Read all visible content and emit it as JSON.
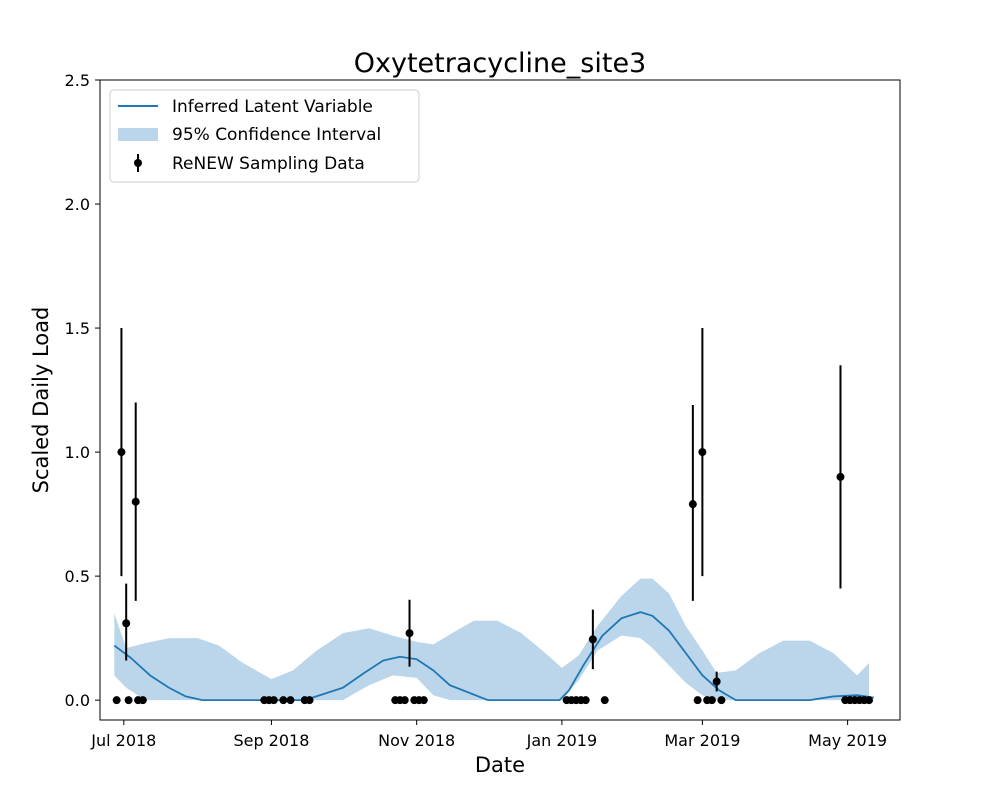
{
  "chart_data": {
    "type": "line",
    "title": "Oxytetracycline_site3",
    "xlabel": "Date",
    "ylabel": "Scaled Daily Load",
    "xlim": [
      "2018-06-21",
      "2019-05-23"
    ],
    "ylim": [
      -0.08,
      2.5
    ],
    "x_ticks": [
      {
        "date": "2018-07-01",
        "label": "Jul 2018"
      },
      {
        "date": "2018-09-01",
        "label": "Sep 2018"
      },
      {
        "date": "2018-11-01",
        "label": "Nov 2018"
      },
      {
        "date": "2019-01-01",
        "label": "Jan 2019"
      },
      {
        "date": "2019-03-01",
        "label": "Mar 2019"
      },
      {
        "date": "2019-05-01",
        "label": "May 2019"
      }
    ],
    "y_ticks": [
      {
        "value": 0.0,
        "label": "0.0"
      },
      {
        "value": 0.5,
        "label": "0.5"
      },
      {
        "value": 1.0,
        "label": "1.0"
      },
      {
        "value": 1.5,
        "label": "1.5"
      },
      {
        "value": 2.0,
        "label": "2.0"
      },
      {
        "value": 2.5,
        "label": "2.5"
      }
    ],
    "grid": false,
    "legend_position": "top-left",
    "legend": [
      {
        "key": "latent",
        "label": "Inferred Latent Variable"
      },
      {
        "key": "ci",
        "label": "95% Confidence Interval"
      },
      {
        "key": "samples",
        "label": "ReNEW Sampling Data"
      }
    ],
    "colors": {
      "line": "#1f77b4",
      "band": "#bbd6ea",
      "points": "#000000"
    },
    "series": [
      {
        "key": "latent",
        "type": "line",
        "x": [
          "2018-06-27",
          "2018-07-04",
          "2018-07-12",
          "2018-07-20",
          "2018-07-27",
          "2018-08-03",
          "2018-08-15",
          "2018-09-01",
          "2018-09-15",
          "2018-10-01",
          "2018-10-10",
          "2018-10-18",
          "2018-10-25",
          "2018-11-01",
          "2018-11-08",
          "2018-11-15",
          "2018-12-01",
          "2018-12-31",
          "2019-01-04",
          "2019-01-10",
          "2019-01-18",
          "2019-01-26",
          "2019-02-03",
          "2019-02-08",
          "2019-02-15",
          "2019-02-22",
          "2019-03-01",
          "2019-03-08",
          "2019-03-15",
          "2019-04-01",
          "2019-04-15",
          "2019-04-25",
          "2019-05-05",
          "2019-05-12"
        ],
        "y": [
          0.22,
          0.17,
          0.1,
          0.05,
          0.015,
          0.0,
          0.0,
          0.0,
          0.0,
          0.05,
          0.11,
          0.16,
          0.175,
          0.165,
          0.12,
          0.06,
          0.0,
          0.0,
          0.04,
          0.14,
          0.26,
          0.33,
          0.355,
          0.34,
          0.28,
          0.19,
          0.1,
          0.04,
          0.0,
          0.0,
          0.0,
          0.015,
          0.02,
          0.01
        ]
      },
      {
        "key": "ci",
        "type": "area",
        "x": [
          "2018-06-27",
          "2018-07-02",
          "2018-07-10",
          "2018-07-20",
          "2018-08-01",
          "2018-08-10",
          "2018-08-20",
          "2018-09-01",
          "2018-09-10",
          "2018-09-20",
          "2018-10-01",
          "2018-10-12",
          "2018-10-22",
          "2018-11-01",
          "2018-11-08",
          "2018-11-15",
          "2018-11-25",
          "2018-12-05",
          "2018-12-15",
          "2018-12-25",
          "2019-01-01",
          "2019-01-08",
          "2019-01-16",
          "2019-01-26",
          "2019-02-03",
          "2019-02-08",
          "2019-02-15",
          "2019-02-22",
          "2019-03-01",
          "2019-03-07",
          "2019-03-15",
          "2019-03-25",
          "2019-04-04",
          "2019-04-15",
          "2019-04-25",
          "2019-05-05",
          "2019-05-10"
        ],
        "upper": [
          0.35,
          0.21,
          0.23,
          0.25,
          0.25,
          0.22,
          0.15,
          0.085,
          0.12,
          0.2,
          0.27,
          0.29,
          0.26,
          0.235,
          0.225,
          0.265,
          0.32,
          0.32,
          0.27,
          0.19,
          0.13,
          0.18,
          0.3,
          0.42,
          0.49,
          0.49,
          0.43,
          0.3,
          0.2,
          0.11,
          0.12,
          0.19,
          0.24,
          0.24,
          0.19,
          0.1,
          0.15
        ],
        "lower": [
          0.1,
          0.05,
          0.0,
          0.0,
          0.0,
          0.0,
          0.0,
          0.0,
          0.0,
          0.0,
          0.0,
          0.06,
          0.1,
          0.09,
          0.02,
          0.0,
          0.0,
          0.0,
          0.0,
          0.0,
          0.0,
          0.08,
          0.2,
          0.26,
          0.25,
          0.21,
          0.14,
          0.07,
          0.02,
          0.0,
          0.0,
          0.0,
          0.0,
          0.0,
          0.0,
          0.0,
          0.0
        ]
      },
      {
        "key": "samples",
        "type": "errorbar",
        "points": [
          {
            "x": "2018-06-28",
            "y": 0.0
          },
          {
            "x": "2018-06-30",
            "y": 1.0,
            "err_low": 0.5,
            "err_high": 1.5
          },
          {
            "x": "2018-07-02",
            "y": 0.31,
            "err_low": 0.16,
            "err_high": 0.47
          },
          {
            "x": "2018-07-03",
            "y": 0.0
          },
          {
            "x": "2018-07-06",
            "y": 0.8,
            "err_low": 0.4,
            "err_high": 1.2
          },
          {
            "x": "2018-07-07",
            "y": 0.0
          },
          {
            "x": "2018-07-09",
            "y": 0.0
          },
          {
            "x": "2018-08-29",
            "y": 0.0
          },
          {
            "x": "2018-08-31",
            "y": 0.0
          },
          {
            "x": "2018-09-02",
            "y": 0.0
          },
          {
            "x": "2018-09-06",
            "y": 0.0
          },
          {
            "x": "2018-09-09",
            "y": 0.0
          },
          {
            "x": "2018-09-15",
            "y": 0.0
          },
          {
            "x": "2018-09-17",
            "y": 0.0
          },
          {
            "x": "2018-10-23",
            "y": 0.0
          },
          {
            "x": "2018-10-25",
            "y": 0.0
          },
          {
            "x": "2018-10-27",
            "y": 0.0
          },
          {
            "x": "2018-10-29",
            "y": 0.27,
            "err_low": 0.135,
            "err_high": 0.405
          },
          {
            "x": "2018-10-31",
            "y": 0.0
          },
          {
            "x": "2018-11-02",
            "y": 0.0
          },
          {
            "x": "2018-11-04",
            "y": 0.0
          },
          {
            "x": "2019-01-03",
            "y": 0.0
          },
          {
            "x": "2019-01-05",
            "y": 0.0
          },
          {
            "x": "2019-01-07",
            "y": 0.0
          },
          {
            "x": "2019-01-09",
            "y": 0.0
          },
          {
            "x": "2019-01-11",
            "y": 0.0
          },
          {
            "x": "2019-01-14",
            "y": 0.245,
            "err_low": 0.125,
            "err_high": 0.365
          },
          {
            "x": "2019-01-19",
            "y": 0.0
          },
          {
            "x": "2019-02-25",
            "y": 0.79,
            "err_low": 0.4,
            "err_high": 1.19
          },
          {
            "x": "2019-02-27",
            "y": 0.0
          },
          {
            "x": "2019-03-01",
            "y": 1.0,
            "err_low": 0.5,
            "err_high": 1.5
          },
          {
            "x": "2019-03-03",
            "y": 0.0
          },
          {
            "x": "2019-03-05",
            "y": 0.0
          },
          {
            "x": "2019-03-07",
            "y": 0.075,
            "err_low": 0.035,
            "err_high": 0.115
          },
          {
            "x": "2019-03-09",
            "y": 0.0
          },
          {
            "x": "2019-04-28",
            "y": 0.9,
            "err_low": 0.45,
            "err_high": 1.35
          },
          {
            "x": "2019-04-30",
            "y": 0.0
          },
          {
            "x": "2019-05-02",
            "y": 0.0
          },
          {
            "x": "2019-05-04",
            "y": 0.0
          },
          {
            "x": "2019-05-06",
            "y": 0.0
          },
          {
            "x": "2019-05-08",
            "y": 0.0
          },
          {
            "x": "2019-05-10",
            "y": 0.0
          }
        ]
      }
    ]
  }
}
